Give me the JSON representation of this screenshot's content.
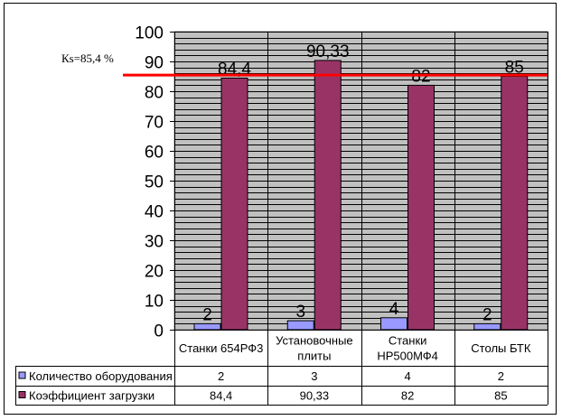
{
  "chart_data": {
    "type": "bar",
    "categories": [
      [
        "Станки 654РФ3"
      ],
      [
        "Установочные",
        "плиты"
      ],
      [
        "Станки",
        "HP500МФ4"
      ],
      [
        "Столы БТК"
      ]
    ],
    "series": [
      {
        "name": "Количество оборудования",
        "color": "#9999ff",
        "values": [
          2,
          3,
          4,
          2
        ],
        "labels": [
          "2",
          "3",
          "4",
          "2"
        ],
        "table_values": [
          "2",
          "3",
          "4",
          "2"
        ]
      },
      {
        "name": "Коэффициент загрузки",
        "color": "#993366",
        "values": [
          84.4,
          90.33,
          82,
          85
        ],
        "labels": [
          "84,4",
          "90,33",
          "82",
          "85"
        ],
        "table_values": [
          "84,4",
          "90,33",
          "82",
          "85"
        ]
      }
    ],
    "ylim": [
      0,
      100
    ],
    "yticks": [
      0,
      10,
      20,
      30,
      40,
      50,
      60,
      70,
      80,
      90,
      100
    ],
    "minor_grid_step": 2,
    "grid": true,
    "plot_background": "#c0c0c0",
    "reference_line": {
      "value": 85.4,
      "label": "Кs=85,4 %",
      "color": "#ff0000"
    },
    "legend": "data-table-bottom"
  }
}
